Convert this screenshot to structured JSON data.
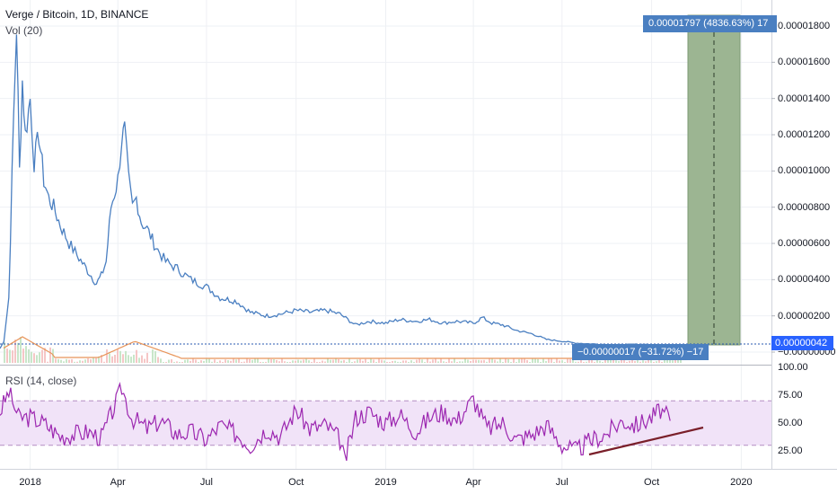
{
  "header": {
    "title": "Verge / Bitcoin, 1D, BINANCE",
    "volume_label": "Vol (20)",
    "rsi_label": "RSI (14, close)"
  },
  "price_axis": {
    "ticks": [
      "0.00001800",
      "0.00001600",
      "0.00001400",
      "0.00001200",
      "0.00001000",
      "0.00000800",
      "0.00000600",
      "0.00000400",
      "0.00000200",
      "−0.00000000"
    ],
    "tick_values": [
      1.8e-05,
      1.6e-05,
      1.4e-05,
      1.2e-05,
      1e-05,
      8e-06,
      6e-06,
      4e-06,
      2e-06,
      0.0
    ]
  },
  "rsi_axis": {
    "ticks": [
      "100.00",
      "75.00",
      "50.00",
      "25.00"
    ],
    "tick_values": [
      100,
      75,
      50,
      25
    ]
  },
  "time_axis": {
    "labels": [
      "2018",
      "Apr",
      "Jul",
      "Oct",
      "2019",
      "Apr",
      "Jul",
      "Oct",
      "2020"
    ],
    "dates": [
      "2018-01-01",
      "2018-04-01",
      "2018-07-01",
      "2018-10-01",
      "2019-01-01",
      "2019-04-01",
      "2019-07-01",
      "2019-10-01",
      "2020-01-01"
    ]
  },
  "badges": {
    "target": "0.00001797 (4836.63%) 17",
    "stop": "−0.00000017 (−31.72%) −17",
    "last_price": "0.00000042"
  },
  "colors": {
    "price_line": "#4a7fc1",
    "volume_ma": "#e8955a",
    "rsi_line": "#9c27b0",
    "rsi_band": "#f3e5f9",
    "target_zone": "#9ab48f",
    "trendline": "#7a1f2a"
  },
  "chart_data": [
    {
      "type": "line",
      "name_hint": "price",
      "x": [
        "2017-12-01",
        "2017-12-05",
        "2017-12-10",
        "2017-12-15",
        "2017-12-18",
        "2017-12-21",
        "2017-12-24",
        "2017-12-27",
        "2018-01-01",
        "2018-01-05",
        "2018-01-10",
        "2018-01-15",
        "2018-01-20",
        "2018-01-25",
        "2018-02-01",
        "2018-02-10",
        "2018-02-20",
        "2018-03-01",
        "2018-03-10",
        "2018-03-15",
        "2018-03-20",
        "2018-03-25",
        "2018-04-01",
        "2018-04-05",
        "2018-04-08",
        "2018-04-12",
        "2018-04-16",
        "2018-04-20",
        "2018-04-25",
        "2018-05-01",
        "2018-05-10",
        "2018-05-20",
        "2018-06-01",
        "2018-06-15",
        "2018-07-01",
        "2018-07-15",
        "2018-08-01",
        "2018-08-15",
        "2018-09-01",
        "2018-09-15",
        "2018-10-01",
        "2018-10-15",
        "2018-11-01",
        "2018-11-15",
        "2018-12-01",
        "2018-12-15",
        "2019-01-01",
        "2019-01-15",
        "2019-02-01",
        "2019-02-15",
        "2019-03-01",
        "2019-03-15",
        "2019-04-01",
        "2019-04-10",
        "2019-04-20",
        "2019-05-01",
        "2019-05-15",
        "2019-06-01",
        "2019-06-15",
        "2019-07-01",
        "2019-07-15",
        "2019-08-01",
        "2019-08-15",
        "2019-09-01",
        "2019-09-15",
        "2019-10-01"
      ],
      "y": [
        2e-07,
        6e-07,
        3e-06,
        1.3e-05,
        1.8e-05,
        1e-05,
        1.5e-05,
        1.2e-05,
        1.4e-05,
        1.05e-05,
        1.2e-05,
        9.5e-06,
        8.5e-06,
        8e-06,
        7e-06,
        6e-06,
        5.2e-06,
        4.5e-06,
        3.8e-06,
        4.2e-06,
        5e-06,
        8e-06,
        9.5e-06,
        1.18e-05,
        1.22e-05,
        9.5e-06,
        8e-06,
        8.5e-06,
        7.2e-06,
        6.8e-06,
        5.8e-06,
        5e-06,
        4.6e-06,
        4e-06,
        3.6e-06,
        3e-06,
        2.8e-06,
        2.2e-06,
        2e-06,
        2.1e-06,
        2.3e-06,
        2.2e-06,
        2.3e-06,
        2.1e-06,
        1.5e-06,
        1.7e-06,
        1.6e-06,
        1.8e-06,
        1.7e-06,
        1.8e-06,
        1.6e-06,
        1.7e-06,
        1.6e-06,
        1.9e-06,
        1.6e-06,
        1.5e-06,
        1.2e-06,
        1e-06,
        7e-07,
        6e-07,
        5e-07,
        4.5e-07,
        4.2e-07,
        4e-07,
        4.3e-07,
        4.2e-07
      ],
      "ylim": [
        0,
        1.85e-05
      ]
    },
    {
      "type": "line",
      "name_hint": "rsi",
      "x": [
        "2017-12-01",
        "2017-12-10",
        "2017-12-20",
        "2018-01-01",
        "2018-01-15",
        "2018-02-01",
        "2018-02-15",
        "2018-03-01",
        "2018-03-15",
        "2018-04-01",
        "2018-04-05",
        "2018-04-15",
        "2018-05-01",
        "2018-05-15",
        "2018-06-01",
        "2018-06-15",
        "2018-07-01",
        "2018-07-15",
        "2018-08-01",
        "2018-08-15",
        "2018-09-01",
        "2018-09-15",
        "2018-10-01",
        "2018-10-15",
        "2018-11-01",
        "2018-11-15",
        "2018-11-20",
        "2018-12-01",
        "2018-12-15",
        "2019-01-01",
        "2019-01-15",
        "2019-02-01",
        "2019-02-15",
        "2019-03-01",
        "2019-03-15",
        "2019-04-01",
        "2019-04-15",
        "2019-05-01",
        "2019-05-15",
        "2019-06-01",
        "2019-06-15",
        "2019-07-01",
        "2019-07-15",
        "2019-08-01",
        "2019-08-15",
        "2019-09-01",
        "2019-09-15",
        "2019-10-01",
        "2019-10-10",
        "2019-10-20"
      ],
      "y": [
        60,
        78,
        55,
        55,
        50,
        38,
        40,
        42,
        37,
        72,
        82,
        55,
        45,
        52,
        40,
        42,
        35,
        48,
        40,
        30,
        45,
        38,
        62,
        45,
        48,
        35,
        15,
        55,
        60,
        50,
        58,
        42,
        55,
        60,
        52,
        72,
        45,
        50,
        35,
        40,
        48,
        30,
        25,
        35,
        40,
        52,
        48,
        55,
        62,
        52
      ],
      "ylim": [
        15,
        100
      ],
      "bands": [
        30,
        50,
        70
      ]
    }
  ]
}
